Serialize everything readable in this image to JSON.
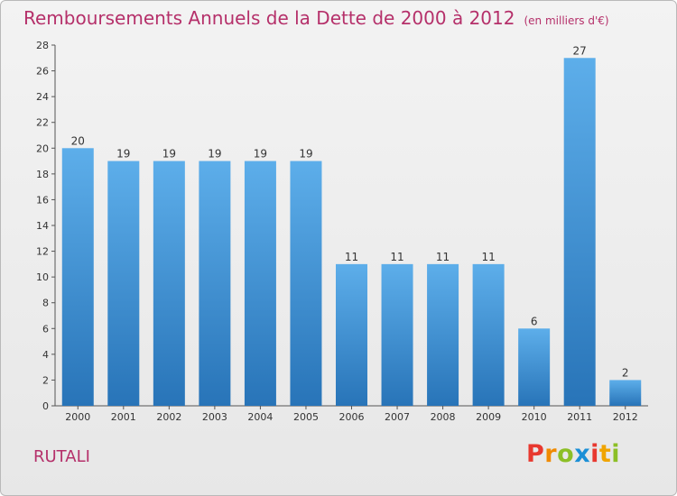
{
  "title": "Remboursements Annuels de la Dette de 2000 à 2012",
  "unit": "(en milliers d'€)",
  "commune": "RUTALI",
  "logo": {
    "letters": [
      "P",
      "r",
      "o",
      "x",
      "i",
      "t",
      "i"
    ],
    "colors": [
      "#e8382f",
      "#f08a00",
      "#8cbf26",
      "#1b8fd6",
      "#e8382f",
      "#f0a400",
      "#8cbf26"
    ]
  },
  "colors": {
    "bar_top": "#5daeea",
    "bar_bottom": "#2874b8",
    "title": "#b5306a"
  },
  "chart_data": {
    "type": "bar",
    "title": "Remboursements Annuels de la Dette de 2000 à 2012",
    "categories": [
      "2000",
      "2001",
      "2002",
      "2003",
      "2004",
      "2005",
      "2006",
      "2007",
      "2008",
      "2009",
      "2010",
      "2011",
      "2012"
    ],
    "values": [
      20,
      19,
      19,
      19,
      19,
      19,
      11,
      11,
      11,
      11,
      6,
      27,
      2
    ],
    "ylim": [
      0,
      28
    ],
    "yticks": [
      0,
      2,
      4,
      6,
      8,
      10,
      12,
      14,
      16,
      18,
      20,
      22,
      24,
      26,
      28
    ],
    "grid": false,
    "data_labels": true
  }
}
